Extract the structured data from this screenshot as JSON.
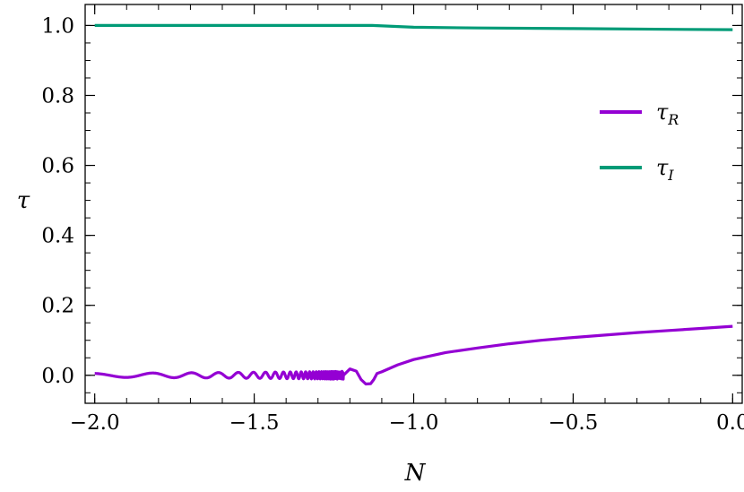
{
  "chart_data": {
    "type": "line",
    "title": "",
    "xlabel": "N",
    "ylabel": "τ",
    "xlim": [
      -2.03,
      0.03
    ],
    "ylim": [
      -0.08,
      1.06
    ],
    "xticks": [
      -2.0,
      -1.5,
      -1.0,
      -0.5,
      0.0
    ],
    "xtick_labels": [
      "−2.0",
      "−1.5",
      "−1.0",
      "−0.5",
      "0.0"
    ],
    "yticks": [
      0.0,
      0.2,
      0.4,
      0.6,
      0.8,
      1.0
    ],
    "ytick_labels": [
      "0.0",
      "0.2",
      "0.4",
      "0.6",
      "0.8",
      "1.0"
    ],
    "grid": false,
    "legend_position": "center-right",
    "series": [
      {
        "name": "τR",
        "name_main": "τ",
        "name_sub": "R",
        "color": "#9400D3",
        "style": "damped-oscillation-then-rise",
        "x": [
          -2.0,
          -1.5,
          -1.3,
          -1.2,
          -1.15,
          -1.12,
          -1.1,
          -1.05,
          -1.0,
          -0.9,
          -0.8,
          -0.7,
          -0.6,
          -0.5,
          -0.4,
          -0.3,
          -0.2,
          -0.1,
          0.0
        ],
        "y": [
          0.0,
          0.0,
          0.0,
          0.0,
          -0.025,
          -0.02,
          0.01,
          0.03,
          0.045,
          0.065,
          0.078,
          0.09,
          0.1,
          0.108,
          0.115,
          0.122,
          0.128,
          0.134,
          0.14
        ]
      },
      {
        "name": "τI",
        "name_main": "τ",
        "name_sub": "I",
        "color": "#009B77",
        "style": "line",
        "x": [
          -2.0,
          -1.5,
          -1.2,
          -1.13,
          -1.0,
          -0.8,
          -0.5,
          -0.2,
          0.0
        ],
        "y": [
          1.0,
          1.0,
          1.0,
          1.0,
          0.995,
          0.993,
          0.991,
          0.989,
          0.988
        ]
      }
    ]
  }
}
